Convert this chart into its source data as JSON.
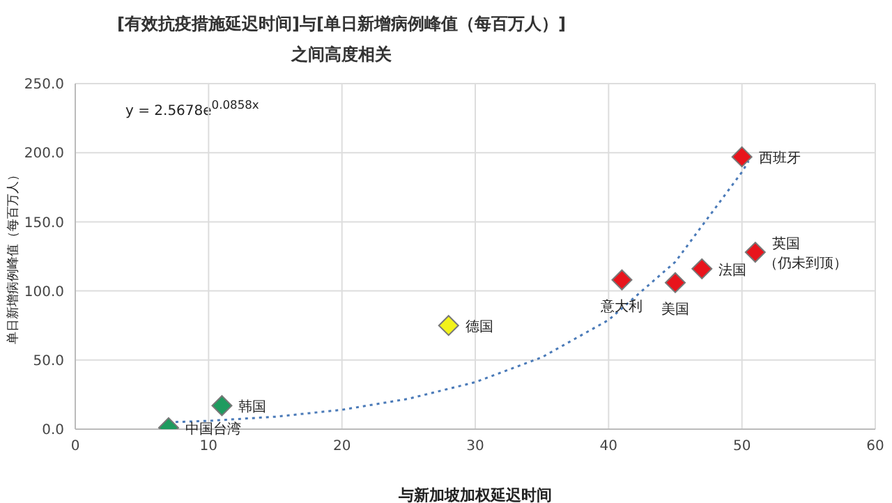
{
  "chart_data": {
    "type": "scatter",
    "title": "[有效抗疫措施延迟时间]与[单日新增病例峰值（每百万人）]\n之间高度相关",
    "xlabel": "与新加坡加权延迟时间",
    "ylabel": "单日新增病例峰值（每百万人）",
    "x": [
      7,
      11,
      28,
      41,
      45,
      47,
      50,
      51
    ],
    "values": [
      1,
      17,
      75,
      108,
      106,
      116,
      197,
      128
    ],
    "colors": [
      "#1e9b5f",
      "#1e9b5f",
      "#f2f21a",
      "#e8141c",
      "#e8141c",
      "#e8141c",
      "#e8141c",
      "#e8141c"
    ],
    "marker": "diamond",
    "series": [
      {
        "type": "line",
        "marker": "none",
        "line_style": "dotted",
        "color": "#4a7ab8",
        "x": [
          7,
          10,
          15,
          20,
          25,
          30,
          35,
          40,
          45,
          50,
          50.5
        ],
        "values": [
          5,
          6,
          9,
          14,
          22,
          34,
          52,
          79,
          121,
          186,
          194
        ]
      }
    ],
    "annotations": [
      "y = 2.5678e$^{0.0858x}$",
      {
        "text": "中国台湾",
        "x": 7,
        "y": 1
      },
      {
        "text": "韩国",
        "x": 11,
        "y": 17
      },
      {
        "text": "德国",
        "x": 28,
        "y": 75
      },
      {
        "text": "意大利",
        "x": 41,
        "y": 108
      },
      {
        "text": "美国",
        "x": 45,
        "y": 106
      },
      {
        "text": "法国",
        "x": 47,
        "y": 116
      },
      {
        "text": "西班牙",
        "x": 50,
        "y": 197
      },
      {
        "text": "英国（仍未到顶）",
        "x": 51,
        "y": 128
      }
    ],
    "xlim": [
      0,
      60
    ],
    "xticks": [
      0,
      10,
      20,
      30,
      40,
      50,
      60
    ],
    "ylim": [
      0,
      250
    ],
    "yticks": [
      {
        "value": 0,
        "label": "0.0"
      },
      {
        "value": 50,
        "label": "50.0"
      },
      {
        "value": 100,
        "label": "100.0"
      },
      {
        "value": 150,
        "label": "150.0"
      },
      {
        "value": 200,
        "label": "200.0"
      },
      {
        "value": 250,
        "label": "250.0"
      }
    ],
    "grid": true
  }
}
